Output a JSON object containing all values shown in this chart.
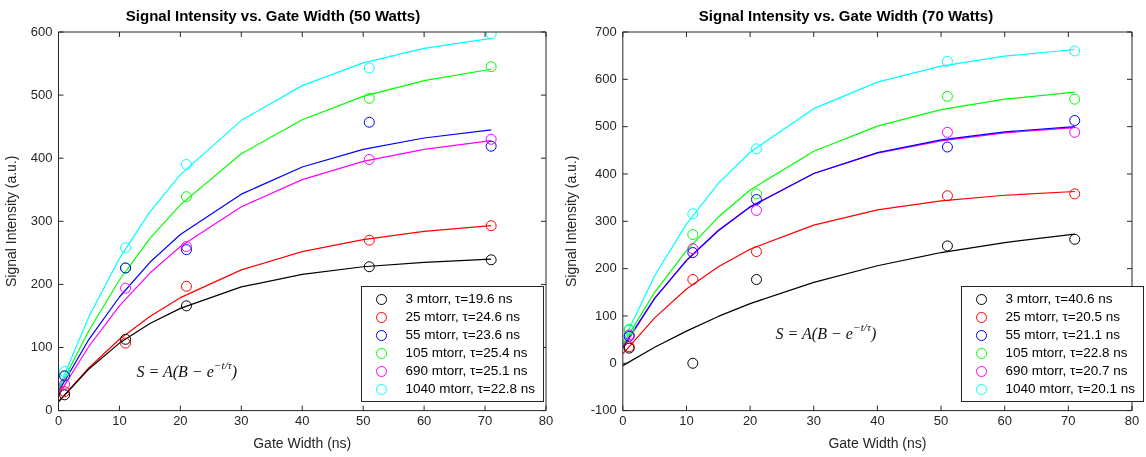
{
  "chart_data": [
    {
      "type": "scatter",
      "title": "Signal Intensity vs. Gate Width (50 Watts)",
      "xlabel": "Gate Width (ns)",
      "ylabel": "Signal Intensity (a.u.)",
      "xlim": [
        0,
        80
      ],
      "xticks": [
        0,
        10,
        20,
        30,
        40,
        50,
        60,
        70,
        80
      ],
      "ylim": [
        0,
        600
      ],
      "yticks": [
        0,
        100,
        200,
        300,
        400,
        500,
        600
      ],
      "grid": false,
      "legend": "bottom right",
      "marker": "circle",
      "annotations": [
        "S = A(B − e$^{−t/τ}$)"
      ],
      "series": [
        {
          "type": "scatter",
          "name": "3 mtorr, τ=19.6 ns",
          "color": "#000000",
          "x": [
            1,
            11,
            21,
            51,
            71
          ],
          "values": [
            25,
            113,
            166,
            228,
            239
          ]
        },
        {
          "type": "scatter",
          "name": "25 mtorr, τ=24.6 ns",
          "color": "#ff0000",
          "x": [
            1,
            11,
            21,
            51,
            71
          ],
          "values": [
            30,
            107,
            197,
            270,
            293
          ]
        },
        {
          "type": "scatter",
          "name": "55 mtorr, τ=23.6 ns",
          "color": "#0000ff",
          "x": [
            1,
            11,
            21,
            51,
            71
          ],
          "values": [
            55,
            226,
            255,
            457,
            419
          ]
        },
        {
          "type": "scatter",
          "name": "105 mtorr, τ=25.4 ns",
          "color": "#00ff00",
          "x": [
            1,
            11,
            21,
            51,
            71
          ],
          "values": [
            55,
            226,
            339,
            495,
            545
          ]
        },
        {
          "type": "scatter",
          "name": "690 mtorr, τ=25.1 ns",
          "color": "#ff00ff",
          "x": [
            1,
            11,
            21,
            51,
            71
          ],
          "values": [
            42,
            194,
            260,
            398,
            430
          ]
        },
        {
          "type": "scatter",
          "name": "1040 mtorr, τ=22.8 ns",
          "color": "#00ffff",
          "x": [
            1,
            11,
            21,
            51,
            71
          ],
          "values": [
            62,
            258,
            390,
            543,
            597
          ]
        },
        {
          "type": "line",
          "marker": "none",
          "color": "#000000",
          "x": [
            0,
            5,
            10,
            15,
            20,
            30,
            40,
            50,
            60,
            71
          ],
          "values": [
            14,
            66,
            107,
            138,
            162,
            196,
            216,
            228,
            235,
            240
          ]
        },
        {
          "type": "line",
          "marker": "none",
          "color": "#ff0000",
          "x": [
            0,
            5,
            10,
            15,
            20,
            30,
            40,
            50,
            60,
            71
          ],
          "values": [
            14,
            68,
            113,
            149,
            179,
            223,
            252,
            271,
            284,
            293
          ]
        },
        {
          "type": "line",
          "marker": "none",
          "color": "#0000ff",
          "x": [
            0,
            5,
            10,
            15,
            20,
            30,
            40,
            50,
            60,
            71
          ],
          "values": [
            30,
            113,
            180,
            235,
            279,
            343,
            386,
            414,
            432,
            445
          ]
        },
        {
          "type": "line",
          "marker": "none",
          "color": "#00ff00",
          "x": [
            0,
            5,
            10,
            15,
            20,
            30,
            40,
            50,
            60,
            71
          ],
          "values": [
            33,
            127,
            207,
            273,
            326,
            407,
            461,
            498,
            523,
            541
          ]
        },
        {
          "type": "line",
          "marker": "none",
          "color": "#ff00ff",
          "x": [
            0,
            5,
            10,
            15,
            20,
            30,
            40,
            50,
            60,
            71
          ],
          "values": [
            25,
            102,
            166,
            218,
            260,
            323,
            366,
            395,
            414,
            428
          ]
        },
        {
          "type": "line",
          "marker": "none",
          "color": "#00ffff",
          "x": [
            0,
            5,
            10,
            15,
            20,
            30,
            40,
            50,
            60,
            71
          ],
          "values": [
            35,
            149,
            241,
            315,
            374,
            460,
            515,
            551,
            574,
            590
          ]
        }
      ]
    },
    {
      "type": "scatter",
      "title": "Signal Intensity vs. Gate Width (70 Watts)",
      "xlabel": "Gate Width (ns)",
      "ylabel": "Signal Intensity (a.u.)",
      "xlim": [
        0,
        80
      ],
      "xticks": [
        0,
        10,
        20,
        30,
        40,
        50,
        60,
        70,
        80
      ],
      "ylim": [
        -100,
        700
      ],
      "yticks": [
        -100,
        0,
        100,
        200,
        300,
        400,
        500,
        600,
        700
      ],
      "grid": false,
      "legend": "bottom right",
      "marker": "circle",
      "annotations": [
        "S = A(B − e$^{−t/τ}$)"
      ],
      "series": [
        {
          "type": "scatter",
          "name": "3 mtorr, τ=40.6 ns",
          "color": "#000000",
          "x": [
            1,
            11,
            21,
            51,
            71
          ],
          "values": [
            32,
            0,
            177,
            248,
            262
          ]
        },
        {
          "type": "scatter",
          "name": "25 mtorr, τ=20.5 ns",
          "color": "#ff0000",
          "x": [
            1,
            11,
            21,
            51,
            71
          ],
          "values": [
            35,
            177,
            236,
            354,
            358
          ]
        },
        {
          "type": "scatter",
          "name": "55 mtorr, τ=21.1 ns",
          "color": "#0000ff",
          "x": [
            1,
            11,
            21,
            51,
            71
          ],
          "values": [
            57,
            234,
            346,
            457,
            513
          ]
        },
        {
          "type": "scatter",
          "name": "105 mtorr, τ=22.8 ns",
          "color": "#00ff00",
          "x": [
            1,
            11,
            21,
            51,
            71
          ],
          "values": [
            70,
            272,
            358,
            564,
            558
          ]
        },
        {
          "type": "scatter",
          "name": "690 mtorr, τ=20.7 ns",
          "color": "#ff00ff",
          "x": [
            1,
            11,
            21,
            51,
            71
          ],
          "values": [
            60,
            242,
            323,
            488,
            488
          ]
        },
        {
          "type": "scatter",
          "name": "1040 mtorr, τ=20.1 ns",
          "color": "#00ffff",
          "x": [
            1,
            11,
            21,
            51,
            71
          ],
          "values": [
            72,
            316,
            453,
            638,
            660
          ]
        },
        {
          "type": "line",
          "marker": "none",
          "color": "#000000",
          "x": [
            0,
            5,
            10,
            15,
            20,
            30,
            40,
            50,
            60,
            71
          ],
          "values": [
            -5,
            34,
            68,
            99,
            126,
            171,
            206,
            234,
            255,
            273
          ]
        },
        {
          "type": "line",
          "marker": "none",
          "color": "#ff0000",
          "x": [
            0,
            5,
            10,
            15,
            20,
            30,
            40,
            50,
            60,
            71
          ],
          "values": [
            20,
            96,
            157,
            204,
            241,
            292,
            324,
            343,
            355,
            363
          ]
        },
        {
          "type": "line",
          "marker": "none",
          "color": "#0000ff",
          "x": [
            0,
            5,
            10,
            15,
            20,
            30,
            40,
            50,
            60,
            71
          ],
          "values": [
            35,
            137,
            217,
            280,
            330,
            401,
            445,
            472,
            489,
            500
          ]
        },
        {
          "type": "line",
          "marker": "none",
          "color": "#00ff00",
          "x": [
            0,
            5,
            10,
            15,
            20,
            30,
            40,
            50,
            60,
            71
          ],
          "values": [
            40,
            150,
            238,
            309,
            366,
            448,
            501,
            536,
            558,
            573
          ]
        },
        {
          "type": "line",
          "marker": "none",
          "color": "#ff00ff",
          "x": [
            0,
            5,
            10,
            15,
            20,
            30,
            40,
            50,
            60,
            71
          ],
          "values": [
            31,
            137,
            218,
            281,
            331,
            401,
            444,
            470,
            487,
            498
          ]
        },
        {
          "type": "line",
          "marker": "none",
          "color": "#00ffff",
          "x": [
            0,
            5,
            10,
            15,
            20,
            30,
            40,
            50,
            60,
            71
          ],
          "values": [
            45,
            185,
            294,
            380,
            446,
            538,
            594,
            628,
            649,
            663
          ]
        }
      ]
    }
  ]
}
